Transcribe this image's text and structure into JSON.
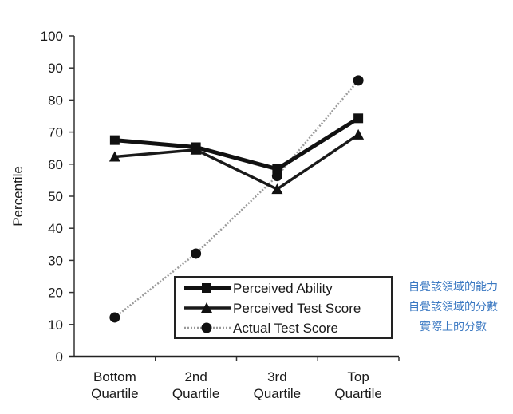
{
  "chart_data": {
    "type": "line",
    "title": "",
    "xlabel": "",
    "ylabel": "Percentile",
    "ylim": [
      0,
      100
    ],
    "yticks": [
      0,
      10,
      20,
      30,
      40,
      50,
      60,
      70,
      80,
      90,
      100
    ],
    "grid": false,
    "legend_position": "lower right (inside)",
    "categories": [
      "Bottom Quartile",
      "2nd Quartile",
      "3rd Quartile",
      "Top Quartile"
    ],
    "category_lines": [
      [
        "Bottom",
        "Quartile"
      ],
      [
        "2nd",
        "Quartile"
      ],
      [
        "3rd",
        "Quartile"
      ],
      [
        "Top",
        "Quartile"
      ]
    ],
    "series": [
      {
        "name": "Perceived Ability",
        "marker": "square",
        "style": "solid-thick",
        "values": [
          67.5,
          65.3,
          58.5,
          74.3
        ]
      },
      {
        "name": "Perceived Test Score",
        "marker": "triangle",
        "style": "solid",
        "values": [
          62.3,
          64.5,
          52.2,
          69.2
        ]
      },
      {
        "name": "Actual Test Score",
        "marker": "circle",
        "style": "dotted",
        "values": [
          12.2,
          32.1,
          56.3,
          86.1
        ]
      }
    ],
    "annotations": [
      "自覺該領域的能力",
      "自覺該領域的分數",
      "實際上的分數"
    ]
  },
  "annotations": {
    "line1": "自覺該領域的能力",
    "line2": "自覺該領域的分數",
    "line3": "實際上的分數"
  },
  "colors": {
    "ink": "#111111",
    "dotted": "#9a9a9a",
    "annotation": "#3a78c2"
  }
}
